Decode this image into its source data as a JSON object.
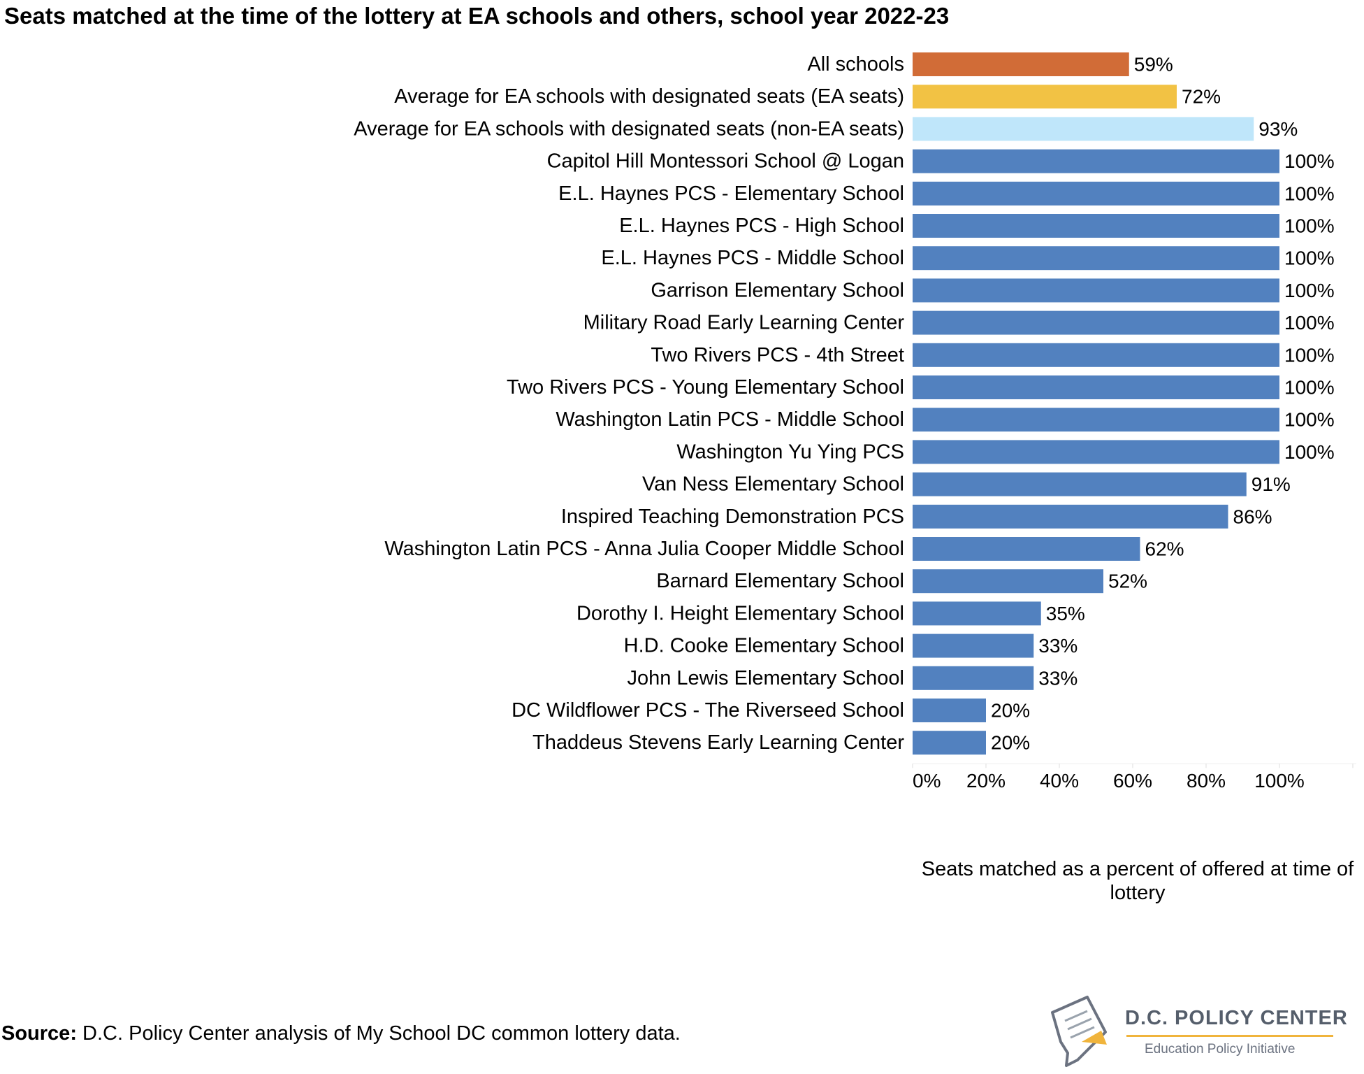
{
  "chart_data": {
    "type": "bar",
    "orientation": "horizontal",
    "title": "Seats matched at the time of the lottery at EA schools and others, school year 2022-23",
    "xlabel": "Seats matched as a percent of offered at time of lottery",
    "ylabel": "",
    "xlim": [
      0,
      120
    ],
    "xticks": [
      "0%",
      "20%",
      "40%",
      "60%",
      "80%",
      "100%"
    ],
    "xtick_values": [
      0,
      20,
      40,
      60,
      80,
      100
    ],
    "grid": false,
    "categories": [
      "All schools",
      "Average for EA schools with designated seats (EA seats)",
      "Average for EA schools with designated seats (non-EA seats)",
      "Capitol Hill Montessori School @ Logan",
      "E.L. Haynes PCS - Elementary School",
      "E.L. Haynes PCS - High School",
      "E.L. Haynes PCS - Middle School",
      "Garrison Elementary School",
      "Military Road Early Learning Center",
      "Two Rivers PCS - 4th Street",
      "Two Rivers PCS - Young Elementary School",
      "Washington Latin PCS - Middle School",
      "Washington Yu Ying PCS",
      "Van Ness Elementary School",
      "Inspired Teaching Demonstration PCS",
      "Washington Latin PCS - Anna Julia Cooper Middle School",
      "Barnard Elementary School",
      "Dorothy I. Height Elementary School",
      "H.D. Cooke Elementary School",
      "John Lewis Elementary School",
      "DC Wildflower PCS - The Riverseed School",
      "Thaddeus Stevens Early Learning Center"
    ],
    "values": [
      59,
      72,
      93,
      100,
      100,
      100,
      100,
      100,
      100,
      100,
      100,
      100,
      100,
      91,
      86,
      62,
      52,
      35,
      33,
      33,
      20,
      20
    ],
    "value_labels": [
      "59%",
      "72%",
      "93%",
      "100%",
      "100%",
      "100%",
      "100%",
      "100%",
      "100%",
      "100%",
      "100%",
      "100%",
      "100%",
      "91%",
      "86%",
      "62%",
      "52%",
      "35%",
      "33%",
      "33%",
      "20%",
      "20%"
    ],
    "colors": [
      "#d16c37",
      "#f2c244",
      "#bfe6fa",
      "#5281bf",
      "#5281bf",
      "#5281bf",
      "#5281bf",
      "#5281bf",
      "#5281bf",
      "#5281bf",
      "#5281bf",
      "#5281bf",
      "#5281bf",
      "#5281bf",
      "#5281bf",
      "#5281bf",
      "#5281bf",
      "#5281bf",
      "#5281bf",
      "#5281bf",
      "#5281bf",
      "#5281bf"
    ]
  },
  "footer": {
    "source_label": "Source:",
    "source_text": " D.C. Policy Center analysis of My School DC common lottery data."
  },
  "logo": {
    "name": "D.C. POLICY CENTER",
    "subtitle": "Education Policy Initiative",
    "accent_color": "#f0b43c"
  }
}
